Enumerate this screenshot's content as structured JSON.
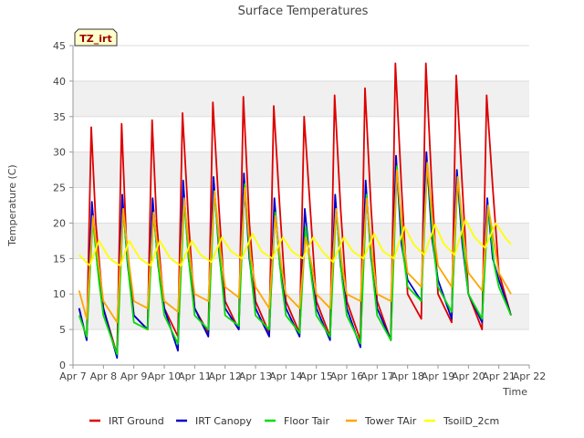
{
  "chart_data": {
    "type": "line",
    "title": "Surface Temperatures",
    "badge": "TZ_irt",
    "xlabel": "Time",
    "ylabel": "Temperature (C)",
    "ylim": [
      0,
      45
    ],
    "yticks": [
      0,
      5,
      10,
      15,
      20,
      25,
      30,
      35,
      40,
      45
    ],
    "xlim": [
      7,
      22
    ],
    "xticks": [
      {
        "v": 7,
        "label": "Apr 7"
      },
      {
        "v": 8,
        "label": "Apr 8"
      },
      {
        "v": 9,
        "label": "Apr 9"
      },
      {
        "v": 10,
        "label": "Apr 10"
      },
      {
        "v": 11,
        "label": "Apr 11"
      },
      {
        "v": 12,
        "label": "Apr 12"
      },
      {
        "v": 13,
        "label": "Apr 13"
      },
      {
        "v": 14,
        "label": "Apr 14"
      },
      {
        "v": 15,
        "label": "Apr 15"
      },
      {
        "v": 16,
        "label": "Apr 16"
      },
      {
        "v": 17,
        "label": "Apr 17"
      },
      {
        "v": 18,
        "label": "Apr 18"
      },
      {
        "v": 19,
        "label": "Apr 19"
      },
      {
        "v": 20,
        "label": "Apr 20"
      },
      {
        "v": 21,
        "label": "Apr 21"
      },
      {
        "v": 22,
        "label": "Apr 22"
      }
    ],
    "grid": true,
    "legend_position": "bottom",
    "series": [
      {
        "name": "IRT Ground",
        "color": "#dd0000",
        "x": [
          7.2,
          7.45,
          7.6,
          7.75,
          8.0,
          8.45,
          8.6,
          8.75,
          9.0,
          9.45,
          9.6,
          9.75,
          10.0,
          10.45,
          10.6,
          10.8,
          11.0,
          11.45,
          11.6,
          11.8,
          12.0,
          12.45,
          12.6,
          12.8,
          13.0,
          13.45,
          13.6,
          13.8,
          14.0,
          14.45,
          14.6,
          14.8,
          15.0,
          15.45,
          15.6,
          15.8,
          16.0,
          16.45,
          16.6,
          16.8,
          17.0,
          17.45,
          17.6,
          17.8,
          18.0,
          18.45,
          18.6,
          18.8,
          19.0,
          19.45,
          19.6,
          19.8,
          20.0,
          20.45,
          20.6,
          20.8,
          21.0,
          21.4
        ],
        "y": [
          8,
          3.5,
          33.5,
          20,
          8,
          1.5,
          34,
          18,
          7,
          5,
          34.5,
          20,
          8,
          4,
          35.5,
          20,
          8,
          4.5,
          37,
          22,
          9,
          5,
          37.8,
          20,
          9,
          4.5,
          36.5,
          22,
          9,
          4.5,
          35,
          22,
          9,
          4,
          38,
          22,
          9,
          3.5,
          39,
          22,
          9,
          3.5,
          42.5,
          25,
          10,
          6.5,
          42.5,
          25,
          10,
          6,
          40.8,
          25,
          10,
          5,
          38,
          25,
          13,
          7
        ]
      },
      {
        "name": "IRT Canopy",
        "color": "#0000cc",
        "x": [
          7.2,
          7.45,
          7.62,
          7.8,
          8.0,
          8.45,
          8.62,
          8.8,
          9.0,
          9.45,
          9.62,
          9.8,
          10.0,
          10.45,
          10.62,
          10.8,
          11.0,
          11.45,
          11.62,
          11.8,
          12.0,
          12.45,
          12.62,
          12.8,
          13.0,
          13.45,
          13.62,
          13.8,
          14.0,
          14.45,
          14.62,
          14.8,
          15.0,
          15.45,
          15.62,
          15.8,
          16.0,
          16.45,
          16.62,
          16.8,
          17.0,
          17.45,
          17.62,
          17.8,
          18.0,
          18.45,
          18.62,
          18.8,
          19.0,
          19.45,
          19.62,
          19.8,
          20.0,
          20.45,
          20.62,
          20.8,
          21.0,
          21.4
        ],
        "y": [
          8,
          3.5,
          23,
          14,
          8,
          1,
          24,
          14,
          7,
          5,
          23.5,
          14,
          8,
          2,
          26,
          15,
          8,
          4,
          26.5,
          16,
          8,
          5,
          27,
          15,
          8,
          4,
          23.5,
          14,
          8,
          4,
          22,
          14,
          8,
          3.5,
          24,
          14,
          8,
          2.5,
          26,
          15,
          8,
          3.5,
          29.5,
          17,
          12,
          9,
          30,
          18,
          12,
          6.5,
          27.5,
          17,
          10,
          6,
          23.5,
          15,
          12,
          7
        ]
      },
      {
        "name": "Floor Tair",
        "color": "#00dd00",
        "x": [
          7.2,
          7.45,
          7.65,
          7.85,
          8.0,
          8.45,
          8.65,
          8.85,
          9.0,
          9.45,
          9.65,
          9.85,
          10.0,
          10.45,
          10.65,
          10.85,
          11.0,
          11.45,
          11.65,
          11.85,
          12.0,
          12.45,
          12.65,
          12.85,
          13.0,
          13.45,
          13.65,
          13.85,
          14.0,
          14.45,
          14.65,
          14.85,
          15.0,
          15.45,
          15.65,
          15.85,
          16.0,
          16.45,
          16.65,
          16.85,
          17.0,
          17.45,
          17.65,
          17.85,
          18.0,
          18.45,
          18.65,
          18.85,
          19.0,
          19.45,
          19.65,
          19.85,
          20.0,
          20.45,
          20.65,
          20.85,
          21.0,
          21.4
        ],
        "y": [
          7,
          4,
          20.5,
          12,
          7,
          1.5,
          22,
          12,
          6,
          5,
          21.5,
          12,
          7,
          3,
          23,
          13,
          7,
          5,
          24.5,
          14,
          7,
          5.5,
          25.5,
          13,
          7,
          5,
          21.5,
          12,
          7,
          4.5,
          19.5,
          12,
          7,
          4,
          22,
          12,
          7,
          3,
          24,
          13,
          7,
          3.5,
          28,
          16,
          11,
          9,
          28.5,
          17,
          11,
          7.5,
          26.5,
          16,
          10,
          6.5,
          22.5,
          14,
          11,
          7
        ]
      },
      {
        "name": "Tower TAir",
        "color": "#ffa500",
        "x": [
          7.2,
          7.45,
          7.65,
          7.85,
          8.0,
          8.45,
          8.65,
          8.85,
          9.0,
          9.45,
          9.65,
          9.85,
          10.0,
          10.45,
          10.65,
          10.85,
          11.0,
          11.45,
          11.65,
          11.85,
          12.0,
          12.45,
          12.65,
          12.85,
          13.0,
          13.45,
          13.65,
          13.85,
          14.0,
          14.45,
          14.65,
          14.85,
          15.0,
          15.45,
          15.65,
          15.85,
          16.0,
          16.45,
          16.65,
          16.85,
          17.0,
          17.45,
          17.65,
          17.85,
          18.0,
          18.45,
          18.65,
          18.85,
          19.0,
          19.45,
          19.65,
          19.85,
          20.0,
          20.45,
          20.65,
          20.85,
          21.0,
          21.4
        ],
        "y": [
          10.5,
          6.5,
          21,
          14,
          9,
          6,
          22,
          14,
          9,
          8,
          21.5,
          14,
          9,
          7.5,
          23.5,
          15,
          10,
          9,
          24.5,
          16,
          11,
          9.5,
          25,
          15,
          11,
          8,
          21,
          14,
          10,
          8,
          18,
          14,
          10,
          8,
          22,
          14,
          10,
          9,
          23.5,
          15,
          10,
          9,
          27.5,
          18,
          13,
          11,
          28.5,
          19,
          14,
          11,
          26.5,
          18,
          13,
          10.5,
          22.5,
          17,
          13,
          10
        ]
      },
      {
        "name": "TsoilD_2cm",
        "color": "#ffff00",
        "x": [
          7.2,
          7.55,
          7.85,
          8.2,
          8.55,
          8.85,
          9.2,
          9.55,
          9.85,
          10.2,
          10.55,
          10.9,
          11.2,
          11.55,
          11.9,
          12.2,
          12.55,
          12.9,
          13.2,
          13.55,
          13.9,
          14.2,
          14.55,
          14.9,
          15.2,
          15.55,
          15.9,
          16.2,
          16.55,
          16.9,
          17.2,
          17.55,
          17.9,
          18.2,
          18.55,
          18.9,
          19.2,
          19.55,
          19.9,
          20.2,
          20.55,
          20.9,
          21.2,
          21.4
        ],
        "y": [
          15.5,
          14,
          17.5,
          15,
          14,
          17.5,
          15,
          14,
          17.5,
          15,
          14,
          17.5,
          15.5,
          14.5,
          18,
          16,
          15,
          18.5,
          16,
          15,
          18,
          16,
          15,
          18,
          16,
          14.5,
          18,
          16,
          15,
          18.5,
          16,
          15,
          19.5,
          17,
          15.5,
          19.8,
          17,
          15.5,
          20.5,
          18,
          16.5,
          20,
          18,
          17
        ]
      }
    ]
  }
}
